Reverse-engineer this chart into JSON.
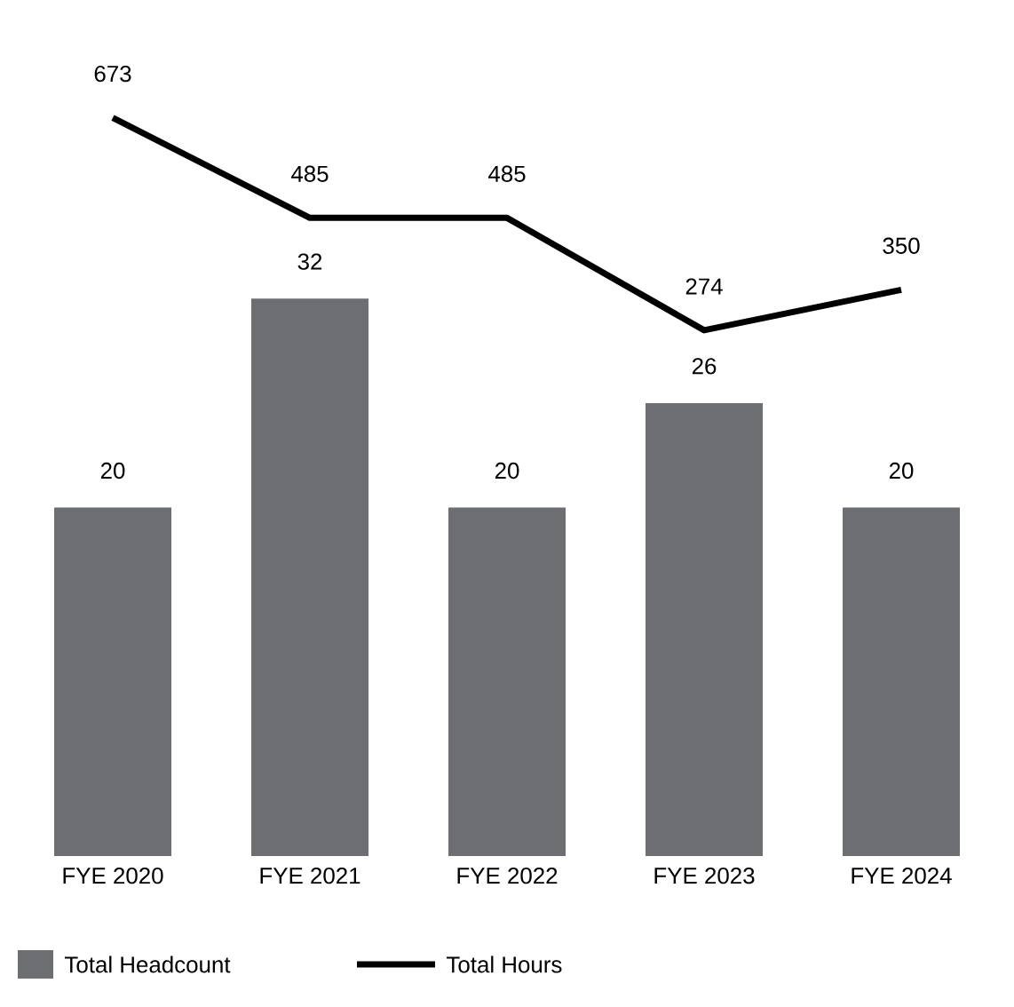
{
  "chart_data": {
    "type": "bar",
    "categories": [
      "FYE 2020",
      "FYE 2021",
      "FYE 2022",
      "FYE 2023",
      "FYE 2024"
    ],
    "series": [
      {
        "name": "Total Headcount",
        "color": "#6d6e71",
        "values": [
          20,
          32,
          20,
          26,
          20
        ]
      },
      {
        "name": "Total Hours",
        "type": "line",
        "axis": "y2",
        "color": "#000000",
        "values": [
          673,
          485,
          485,
          274,
          350
        ]
      }
    ],
    "data_labels": true,
    "tick_labels": "x",
    "legend": "bottom",
    "marker": "none",
    "line_style": "solid"
  }
}
